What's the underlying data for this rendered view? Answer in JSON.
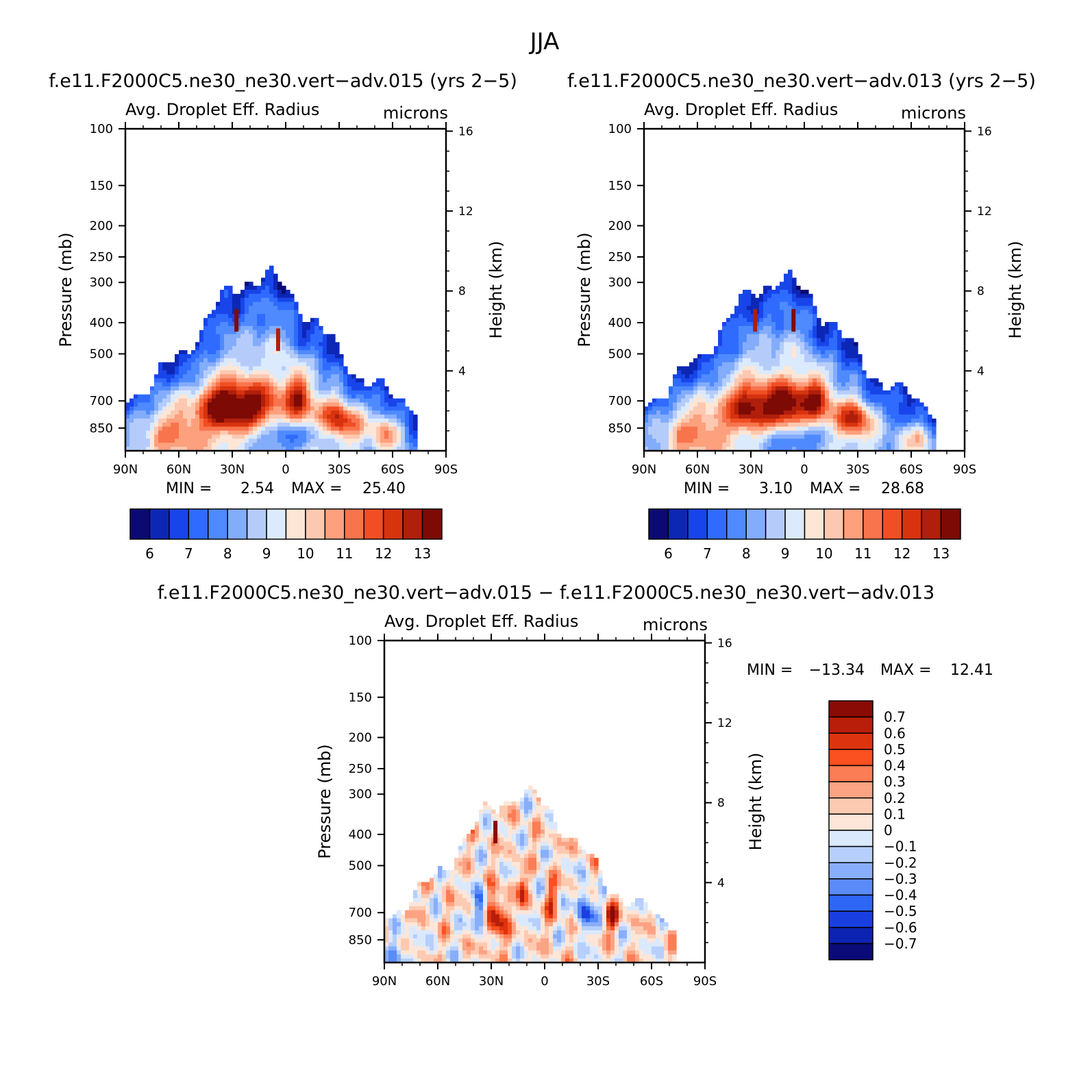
{
  "figure_title": "JJA",
  "chart_data": [
    {
      "type": "heatmap",
      "title": "f.e11.F2000C5.ne30_ne30.vert−adv.015 (yrs 2−5)",
      "variable_label": "Avg. Droplet Eff. Radius",
      "units": "microns",
      "ylabel": "Pressure (mb)",
      "ylabel_right": "Height (km)",
      "x_ticks": [
        "90N",
        "60N",
        "30N",
        "0",
        "30S",
        "60S",
        "90S"
      ],
      "y_ticks": [
        100,
        150,
        200,
        250,
        300,
        400,
        500,
        700,
        850
      ],
      "y_ticks_right": [
        16,
        12,
        8,
        4
      ],
      "ylim": [
        100,
        1000
      ],
      "y_scale": "log",
      "min_label": "MIN =",
      "min_value": "2.54",
      "max_label": "MAX =",
      "max_value": "25.40",
      "colorbar_labels": [
        "6",
        "7",
        "8",
        "9",
        "10",
        "11",
        "12",
        "13"
      ],
      "colorbar_colors": [
        "#0b0a72",
        "#0d27b5",
        "#1845ea",
        "#2f6bfe",
        "#4f8afe",
        "#83acfb",
        "#b5ccfb",
        "#dbeafd",
        "#fee6d6",
        "#fcc8b1",
        "#fca07d",
        "#f8744d",
        "#f04e23",
        "#d7330f",
        "#b01f0b",
        "#7e0a05"
      ],
      "field_shape": "zonal-mean cloud droplet radius, 2.54 to 25.40 microns; low-level values of 11-13+ near 30N-0 and 30S at 600-800 mb, values of 6-8 at cloud tops near 400-500 mb; data between 90N and about 75S"
    },
    {
      "type": "heatmap",
      "title": "f.e11.F2000C5.ne30_ne30.vert−adv.013 (yrs 2−5)",
      "variable_label": "Avg. Droplet Eff. Radius",
      "units": "microns",
      "ylabel": "Pressure (mb)",
      "ylabel_right": "Height (km)",
      "x_ticks": [
        "90N",
        "60N",
        "30N",
        "0",
        "30S",
        "60S",
        "90S"
      ],
      "y_ticks": [
        100,
        150,
        200,
        250,
        300,
        400,
        500,
        700,
        850
      ],
      "y_ticks_right": [
        16,
        12,
        8,
        4
      ],
      "ylim": [
        100,
        1000
      ],
      "y_scale": "log",
      "min_label": "MIN =",
      "min_value": "3.10",
      "max_label": "MAX =",
      "max_value": "28.68",
      "colorbar_labels": [
        "6",
        "7",
        "8",
        "9",
        "10",
        "11",
        "12",
        "13"
      ],
      "colorbar_colors": [
        "#0b0a72",
        "#0d27b5",
        "#1845ea",
        "#2f6bfe",
        "#4f8afe",
        "#83acfb",
        "#b5ccfb",
        "#dbeafd",
        "#fee6d6",
        "#fcc8b1",
        "#fca07d",
        "#f8744d",
        "#f04e23",
        "#d7330f",
        "#b01f0b",
        "#7e0a05"
      ],
      "field_shape": "zonal-mean cloud droplet radius, 3.10 to 28.68 microns; pattern similar to the first panel with a stronger maximum near 15N at 600-750 mb"
    },
    {
      "type": "heatmap",
      "title": "f.e11.F2000C5.ne30_ne30.vert−adv.015 − f.e11.F2000C5.ne30_ne30.vert−adv.013",
      "variable_label": "Avg. Droplet Eff. Radius",
      "units": "microns",
      "ylabel": "Pressure (mb)",
      "ylabel_right": "Height (km)",
      "x_ticks": [
        "90N",
        "60N",
        "30N",
        "0",
        "30S",
        "60S",
        "90S"
      ],
      "y_ticks": [
        100,
        150,
        200,
        250,
        300,
        400,
        500,
        700,
        850
      ],
      "y_ticks_right": [
        16,
        12,
        8,
        4
      ],
      "ylim": [
        100,
        1000
      ],
      "y_scale": "log",
      "min_label": "MIN =",
      "min_value": "−13.34",
      "max_label": "MAX =",
      "max_value": "12.41",
      "colorbar_labels": [
        "0.7",
        "0.6",
        "0.5",
        "0.4",
        "0.3",
        "0.2",
        "0.1",
        "0",
        "−0.1",
        "−0.2",
        "−0.3",
        "−0.4",
        "−0.5",
        "−0.6",
        "−0.7"
      ],
      "colorbar_colors": [
        "#8a0a05",
        "#b91e0b",
        "#dd340f",
        "#fb5020",
        "#fb7d55",
        "#fca384",
        "#fccab1",
        "#fde6d8",
        "#dbe9fc",
        "#b6cffc",
        "#88aefb",
        "#5a8bf8",
        "#2e67f6",
        "#1a3fe0",
        "#0c23b2",
        "#0a0b78"
      ],
      "field_shape": "difference of the two panels, -13.34 to 12.41; small mixed positive and negative differences, mostly within +/-0.3, with stronger positive and negative pockets near 30N and 20S-40S at 600-800 mb"
    }
  ]
}
